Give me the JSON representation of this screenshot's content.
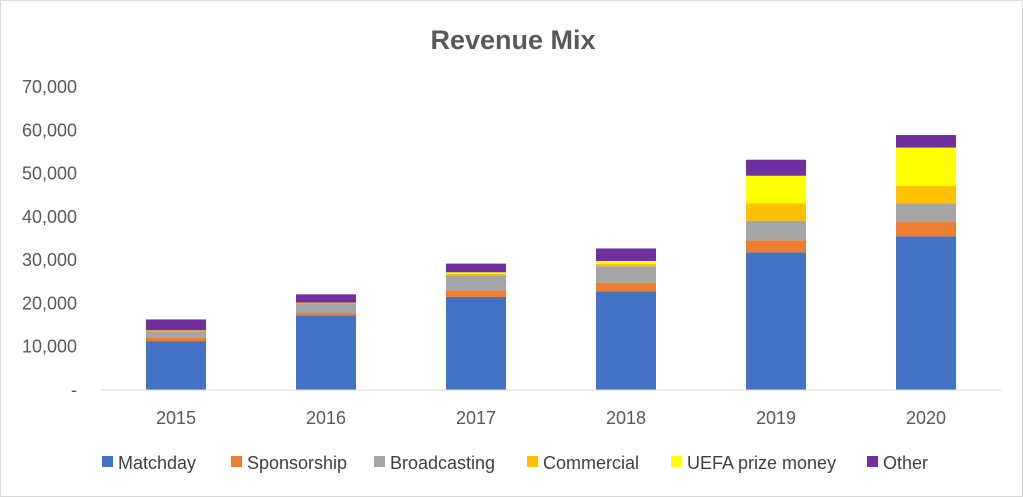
{
  "chart_data": {
    "type": "bar",
    "stacked": true,
    "title": "Revenue Mix",
    "xlabel": "",
    "ylabel": "",
    "ylim": [
      0,
      70000
    ],
    "y_ticks": [
      0,
      10000,
      20000,
      30000,
      40000,
      50000,
      60000,
      70000
    ],
    "y_tick_labels": [
      "-",
      "10,000",
      "20,000",
      "30,000",
      "40,000",
      "50,000",
      "60,000",
      "70,000"
    ],
    "grid": false,
    "legend_position": "bottom",
    "categories": [
      "2015",
      "2016",
      "2017",
      "2018",
      "2019",
      "2020"
    ],
    "series": [
      {
        "name": "Matchday",
        "color": "#4472C4",
        "values": [
          11300,
          17200,
          21500,
          22800,
          31800,
          35500
        ]
      },
      {
        "name": "Sponsorship",
        "color": "#ED7D31",
        "values": [
          800,
          600,
          1500,
          2000,
          2800,
          3300
        ]
      },
      {
        "name": "Broadcasting",
        "color": "#A5A5A5",
        "values": [
          1500,
          2200,
          3500,
          3800,
          4500,
          4300
        ]
      },
      {
        "name": "Commercial",
        "color": "#FFC000",
        "values": [
          200,
          200,
          300,
          500,
          4000,
          4100
        ]
      },
      {
        "name": "UEFA prize money",
        "color": "#FFFF00",
        "values": [
          0,
          0,
          400,
          700,
          6400,
          8800
        ]
      },
      {
        "name": "Other",
        "color": "#7030A0",
        "values": [
          2500,
          1900,
          2000,
          2900,
          3700,
          2900
        ]
      }
    ]
  }
}
